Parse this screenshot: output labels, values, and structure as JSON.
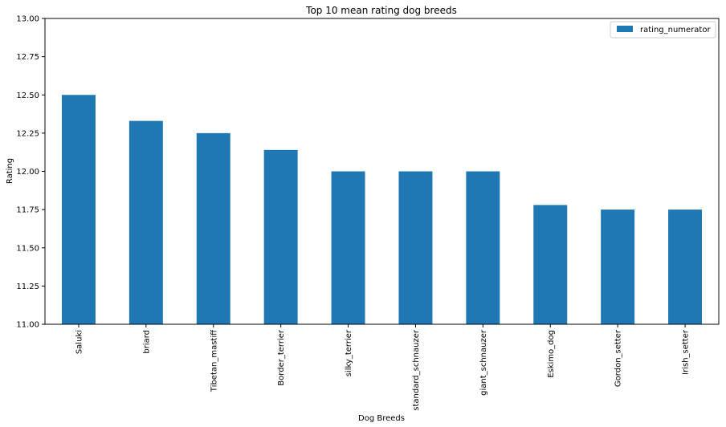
{
  "chart_data": {
    "type": "bar",
    "title": "Top 10 mean rating dog breeds",
    "xlabel": "Dog Breeds",
    "ylabel": "Rating",
    "categories": [
      "Saluki",
      "briard",
      "Tibetan_mastiff",
      "Border_terrier",
      "silky_terrier",
      "standard_schnauzer",
      "giant_schnauzer",
      "Eskimo_dog",
      "Gordon_setter",
      "Irish_setter"
    ],
    "series": [
      {
        "name": "rating_numerator",
        "values": [
          12.5,
          12.33,
          12.25,
          12.14,
          12.0,
          12.0,
          12.0,
          11.78,
          11.75,
          11.75
        ],
        "color": "#1f77b4"
      }
    ],
    "ylim": [
      11.0,
      13.0
    ],
    "yticks": [
      "11.00",
      "11.25",
      "11.50",
      "11.75",
      "12.00",
      "12.25",
      "12.50",
      "12.75",
      "13.00"
    ],
    "grid": false,
    "legend_position": "top-right"
  }
}
